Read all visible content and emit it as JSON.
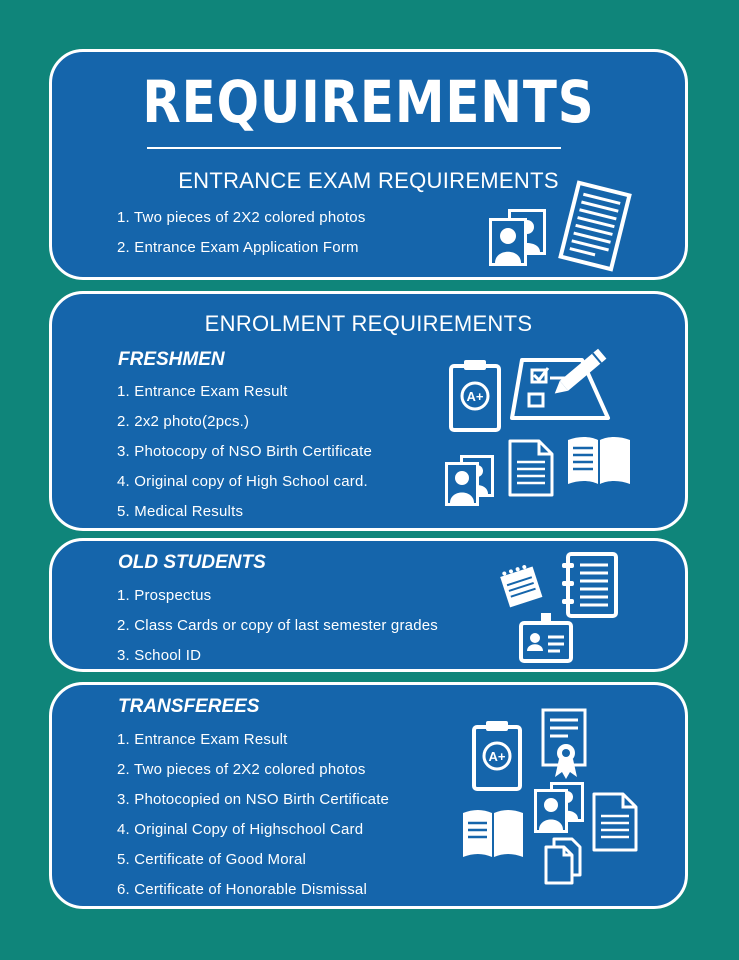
{
  "title": "REQUIREMENTS",
  "entrance": {
    "heading": "ENTRANCE EXAM REQUIREMENTS",
    "items": [
      "1. Two pieces of 2X2 colored photos",
      "2. Entrance Exam Application Form"
    ]
  },
  "enrolment": {
    "heading": "ENROLMENT REQUIREMENTS",
    "freshmen": {
      "label": "FRESHMEN",
      "items": [
        "1. Entrance Exam Result",
        "2. 2x2 photo(2pcs.)",
        "3. Photocopy of NSO Birth Certificate",
        "4. Original copy of High School card.",
        "5. Medical Results"
      ]
    }
  },
  "old_students": {
    "label": "OLD STUDENTS",
    "items": [
      "1. Prospectus",
      "2. Class Cards or copy of last semester grades",
      "3. School ID"
    ]
  },
  "transferees": {
    "label": "TRANSFEREES",
    "items": [
      "1. Entrance Exam Result",
      "2. Two pieces of 2X2 colored photos",
      "3. Photocopied on NSO Birth Certificate",
      "4. Original Copy of Highschool Card",
      "5. Certificate of Good Moral",
      "6. Certificate of Honorable Dismissal"
    ]
  },
  "icons": {
    "grade_text": "A+"
  },
  "colors": {
    "background": "#0f857a",
    "panel": "#1565ab",
    "text": "#ffffff"
  }
}
